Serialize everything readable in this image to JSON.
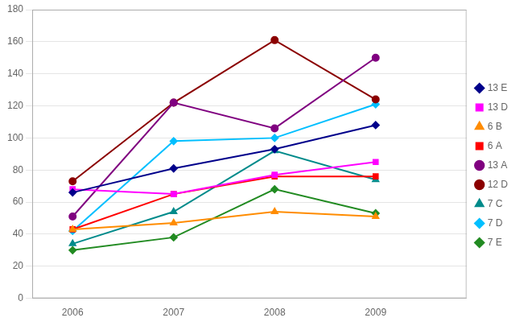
{
  "chart_data": {
    "type": "line",
    "x": [
      2006,
      2007,
      2008,
      2009
    ],
    "series": [
      {
        "name": "13 E",
        "color": "#00008B",
        "marker": "diamond",
        "values": [
          66,
          81,
          93,
          108
        ]
      },
      {
        "name": "13 D",
        "color": "#FF00FF",
        "marker": "square",
        "values": [
          68,
          65,
          77,
          85
        ]
      },
      {
        "name": "6 B",
        "color": "#FF8C00",
        "marker": "triangle",
        "values": [
          43,
          47,
          54,
          51
        ]
      },
      {
        "name": "6 A",
        "color": "#FF0000",
        "marker": "square",
        "values": [
          43,
          65,
          76,
          76
        ]
      },
      {
        "name": "13 A",
        "color": "#800080",
        "marker": "circle",
        "values": [
          51,
          122,
          106,
          150
        ]
      },
      {
        "name": "12 D",
        "color": "#8B0000",
        "marker": "circle",
        "values": [
          73,
          122,
          161,
          124
        ]
      },
      {
        "name": "7 C",
        "color": "#008B8B",
        "marker": "triangle",
        "values": [
          34,
          54,
          92,
          74
        ]
      },
      {
        "name": "7 D",
        "color": "#00BFFF",
        "marker": "diamond",
        "values": [
          42,
          98,
          100,
          121
        ]
      },
      {
        "name": "7 E",
        "color": "#228B22",
        "marker": "diamond",
        "values": [
          30,
          38,
          68,
          53
        ]
      }
    ],
    "xlim": [
      2005.6,
      2009.9
    ],
    "xticks": [
      2006,
      2007,
      2008,
      2009
    ],
    "ylim": [
      0,
      180
    ],
    "yticks": [
      0,
      20,
      40,
      60,
      80,
      100,
      120,
      140,
      160,
      180
    ],
    "grid": "y",
    "legend": "right"
  }
}
